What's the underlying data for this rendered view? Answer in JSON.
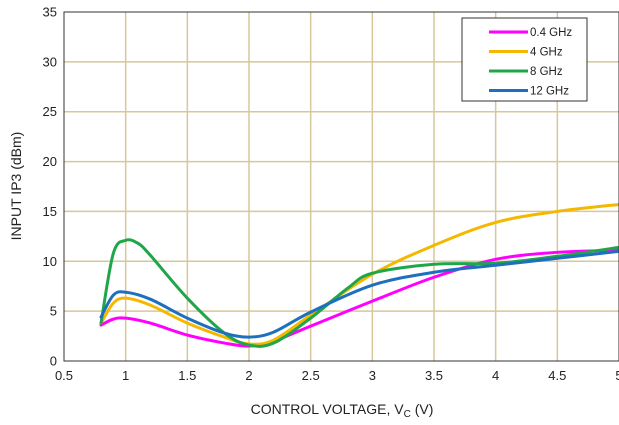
{
  "chart_data": {
    "type": "line",
    "title": "",
    "xlabel": {
      "main": "CONTROL VOLTAGE, V",
      "sub": "C",
      "unit": " (V)"
    },
    "ylabel": "INPUT IP3 (dBm)",
    "xlim": [
      0.5,
      5
    ],
    "ylim": [
      0,
      35
    ],
    "xticks": [
      0.5,
      1,
      1.5,
      2,
      2.5,
      3,
      3.5,
      4,
      4.5,
      5
    ],
    "yticks": [
      0,
      5,
      10,
      15,
      20,
      25,
      30,
      35
    ],
    "xtick_labels": [
      "0.5",
      "1",
      "1.5",
      "2",
      "2.5",
      "3",
      "3.5",
      "4",
      "4.5",
      "5"
    ],
    "ytick_labels": [
      "0",
      "5",
      "10",
      "15",
      "20",
      "25",
      "30",
      "35"
    ],
    "grid": {
      "x": true,
      "y": true
    },
    "legend_position": "top-right",
    "series": [
      {
        "name": "0.4 GHz",
        "color": "#ff00ff",
        "x": [
          0.8,
          0.9,
          1.0,
          1.2,
          1.5,
          1.8,
          2.0,
          2.2,
          2.5,
          3.0,
          3.5,
          4.0,
          4.5,
          5.0
        ],
        "y": [
          3.6,
          4.2,
          4.3,
          3.8,
          2.6,
          1.8,
          1.5,
          2.0,
          3.5,
          6.0,
          8.4,
          10.2,
          10.9,
          11.1
        ]
      },
      {
        "name": "4 GHz",
        "color": "#f5b800",
        "x": [
          0.8,
          0.9,
          1.0,
          1.2,
          1.5,
          1.8,
          2.0,
          2.2,
          2.5,
          3.0,
          3.5,
          4.0,
          4.5,
          5.0
        ],
        "y": [
          3.8,
          5.8,
          6.3,
          5.6,
          3.8,
          2.4,
          1.7,
          2.1,
          4.6,
          8.7,
          11.6,
          13.9,
          15.0,
          15.7
        ]
      },
      {
        "name": "8 GHz",
        "color": "#1fa64a",
        "x": [
          0.8,
          0.9,
          1.0,
          1.1,
          1.2,
          1.5,
          1.8,
          2.0,
          2.2,
          2.5,
          2.8,
          3.0,
          3.5,
          4.0,
          4.5,
          5.0
        ],
        "y": [
          3.8,
          10.8,
          12.1,
          11.8,
          10.6,
          6.3,
          2.8,
          1.6,
          1.8,
          4.3,
          7.3,
          8.8,
          9.7,
          9.8,
          10.5,
          11.4
        ]
      },
      {
        "name": "12 GHz",
        "color": "#1f6fbf",
        "x": [
          0.8,
          0.9,
          1.0,
          1.2,
          1.5,
          1.8,
          2.0,
          2.2,
          2.5,
          3.0,
          3.5,
          4.0,
          4.5,
          5.0
        ],
        "y": [
          4.4,
          6.6,
          6.9,
          6.2,
          4.3,
          2.8,
          2.4,
          2.9,
          4.9,
          7.6,
          8.9,
          9.6,
          10.3,
          11.0
        ]
      }
    ]
  }
}
